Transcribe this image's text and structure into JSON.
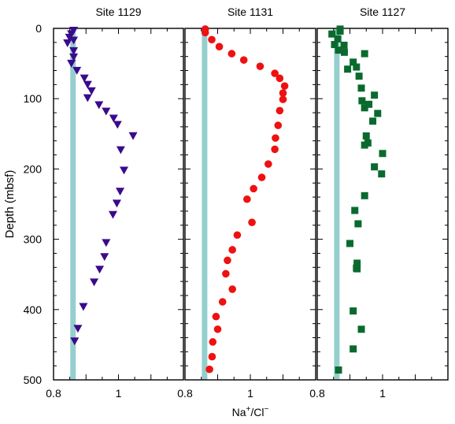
{
  "chart_data": {
    "type": "scatter",
    "ylabel": "Depth (mbsf)",
    "xlabel_main": "Na",
    "xlabel_sup1": "+",
    "xlabel_mid": "/Cl",
    "xlabel_sup2": "−",
    "ylim": [
      0,
      500
    ],
    "yticks": [
      0,
      100,
      200,
      300,
      400,
      500
    ],
    "xlim": [
      0.8,
      1.2
    ],
    "xticks": [
      {
        "value": 0.8,
        "label": "0.8"
      },
      {
        "value": 1.0,
        "label": "1"
      }
    ],
    "reference_line": {
      "value": 0.86,
      "color": "#94CFCD"
    },
    "panels": [
      {
        "title": "Site  1129",
        "marker": "triangle-down",
        "color": "#3A0A8C",
        "points": [
          [
            0.862,
            3
          ],
          [
            0.855,
            8
          ],
          [
            0.849,
            13
          ],
          [
            0.862,
            17
          ],
          [
            0.843,
            21
          ],
          [
            0.862,
            32
          ],
          [
            0.862,
            41
          ],
          [
            0.855,
            50
          ],
          [
            0.872,
            60
          ],
          [
            0.895,
            71
          ],
          [
            0.905,
            80
          ],
          [
            0.917,
            89
          ],
          [
            0.905,
            99
          ],
          [
            0.94,
            109
          ],
          [
            0.962,
            118
          ],
          [
            0.985,
            128
          ],
          [
            0.997,
            137
          ],
          [
            1.045,
            153
          ],
          [
            1.007,
            173
          ],
          [
            1.017,
            202
          ],
          [
            1.005,
            232
          ],
          [
            0.995,
            249
          ],
          [
            0.983,
            265
          ],
          [
            0.962,
            305
          ],
          [
            0.957,
            325
          ],
          [
            0.942,
            343
          ],
          [
            0.925,
            361
          ],
          [
            0.892,
            396
          ],
          [
            0.875,
            427
          ],
          [
            0.865,
            445
          ]
        ]
      },
      {
        "title": "Site  1131",
        "marker": "circle",
        "color": "#EE1111",
        "points": [
          [
            0.862,
            1
          ],
          [
            0.862,
            6
          ],
          [
            0.882,
            16
          ],
          [
            0.905,
            26
          ],
          [
            0.943,
            36
          ],
          [
            0.98,
            45
          ],
          [
            1.03,
            54
          ],
          [
            1.075,
            64
          ],
          [
            1.09,
            71
          ],
          [
            1.105,
            82
          ],
          [
            1.1,
            92
          ],
          [
            1.1,
            101
          ],
          [
            1.09,
            117
          ],
          [
            1.085,
            138
          ],
          [
            1.077,
            156
          ],
          [
            1.075,
            172
          ],
          [
            1.055,
            193
          ],
          [
            1.035,
            212
          ],
          [
            1.01,
            228
          ],
          [
            0.99,
            243
          ],
          [
            1.005,
            276
          ],
          [
            0.96,
            294
          ],
          [
            0.945,
            315
          ],
          [
            0.93,
            330
          ],
          [
            0.925,
            349
          ],
          [
            0.945,
            371
          ],
          [
            0.915,
            389
          ],
          [
            0.895,
            410
          ],
          [
            0.9,
            428
          ],
          [
            0.885,
            446
          ],
          [
            0.883,
            467
          ],
          [
            0.875,
            485
          ]
        ]
      },
      {
        "title": "Site  1127",
        "marker": "square",
        "color": "#0A6A2E",
        "points": [
          [
            0.87,
            1
          ],
          [
            0.87,
            4
          ],
          [
            0.845,
            8
          ],
          [
            0.863,
            15
          ],
          [
            0.853,
            23
          ],
          [
            0.882,
            24
          ],
          [
            0.865,
            31
          ],
          [
            0.883,
            34
          ],
          [
            0.945,
            36
          ],
          [
            0.91,
            48
          ],
          [
            0.92,
            55
          ],
          [
            0.893,
            58
          ],
          [
            0.928,
            68
          ],
          [
            0.935,
            85
          ],
          [
            0.975,
            95
          ],
          [
            0.937,
            103
          ],
          [
            0.958,
            108
          ],
          [
            0.945,
            113
          ],
          [
            0.985,
            121
          ],
          [
            0.97,
            132
          ],
          [
            0.95,
            153
          ],
          [
            0.955,
            163
          ],
          [
            0.945,
            166
          ],
          [
            1.0,
            178
          ],
          [
            0.975,
            197
          ],
          [
            0.997,
            207
          ],
          [
            0.945,
            238
          ],
          [
            0.915,
            259
          ],
          [
            0.925,
            278
          ],
          [
            0.9,
            306
          ],
          [
            0.922,
            334
          ],
          [
            0.922,
            342
          ],
          [
            0.92,
            341
          ],
          [
            0.91,
            402
          ],
          [
            0.935,
            428
          ],
          [
            0.91,
            456
          ],
          [
            0.865,
            486
          ]
        ]
      }
    ]
  }
}
